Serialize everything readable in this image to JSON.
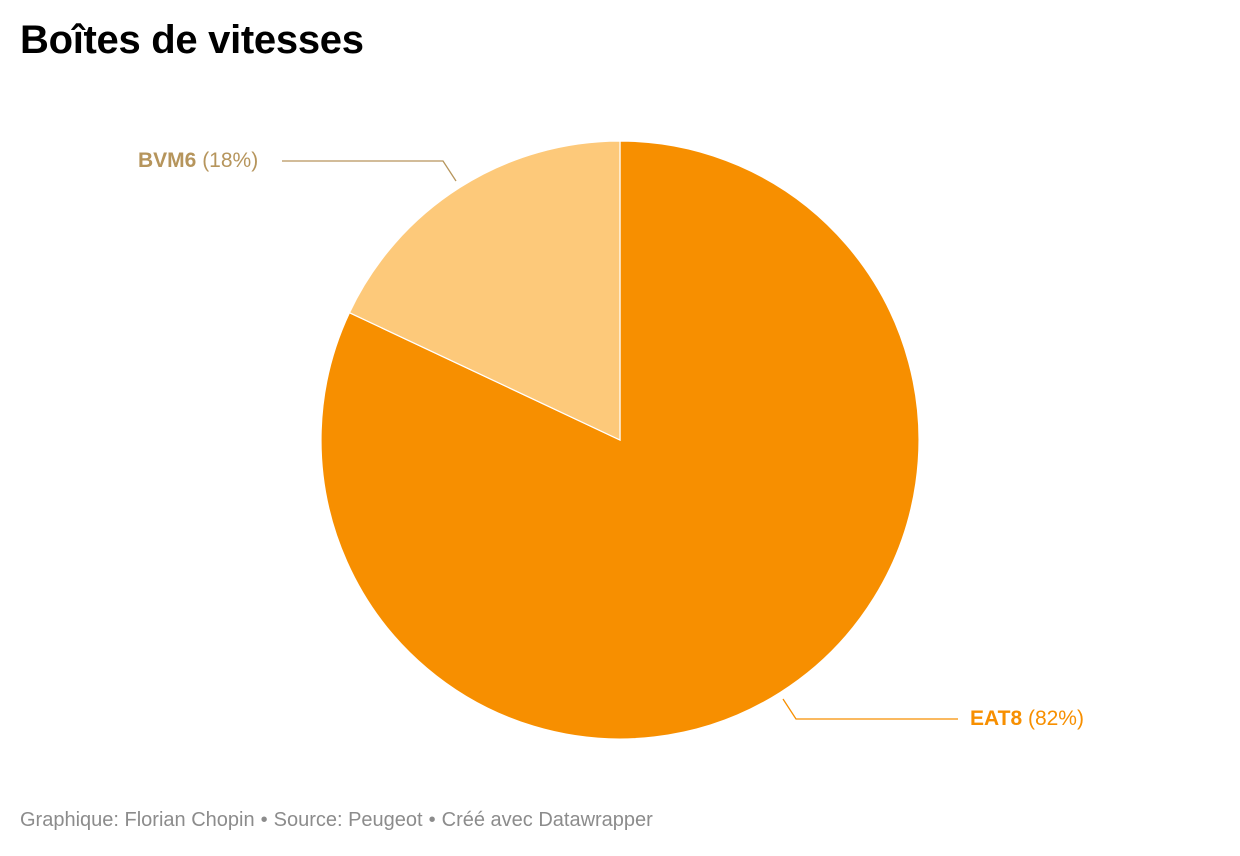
{
  "title": "Boîtes de vitesses",
  "chart_data": {
    "type": "pie",
    "title": "Boîtes de vitesses",
    "slices": [
      {
        "name": "EAT8",
        "value": 82,
        "label": "(82%)",
        "color": "#f78f00",
        "label_color": "#f78f00"
      },
      {
        "name": "BVM6",
        "value": 18,
        "label": "(18%)",
        "color": "#fdc97a",
        "label_color": "#b6955c"
      }
    ],
    "start_angle_deg": 0,
    "direction": "clockwise",
    "slice_border_color": "#ffffff"
  },
  "footer": {
    "credit": "Graphique: Florian Chopin",
    "source": "Source: Peugeot",
    "made_with": "Créé avec Datawrapper",
    "separator": "•"
  }
}
